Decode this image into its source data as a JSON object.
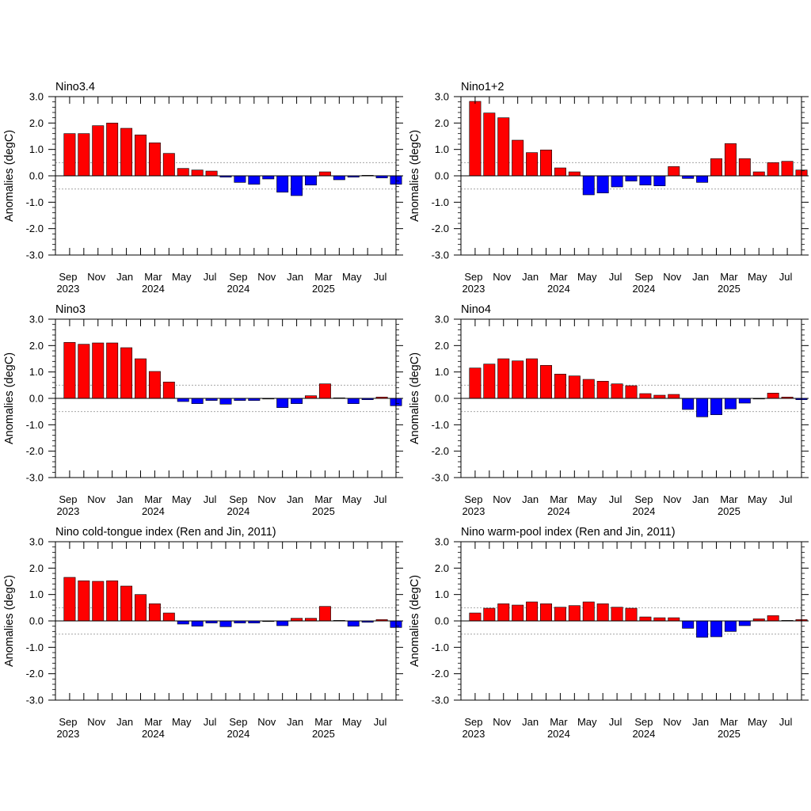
{
  "figure": {
    "colors": {
      "positive": "#ff0000",
      "negative": "#0000ff",
      "threshold_line": "#999999",
      "axis": "#000000"
    }
  },
  "chart_data": [
    {
      "type": "bar",
      "title": "Nino3.4",
      "ylabel": "Anomalies (degC)",
      "ylim": [
        -3.0,
        3.0
      ],
      "yticks": [
        "3.0",
        "2.0",
        "1.0",
        "0.0",
        "-1.0",
        "-2.0",
        "-3.0"
      ],
      "threshold_lines": [
        0.5,
        -0.5
      ],
      "xticks": [
        {
          "label": "Sep",
          "year": "2023"
        },
        {
          "label": "Nov"
        },
        {
          "label": "Jan"
        },
        {
          "label": "Mar",
          "year": "2024"
        },
        {
          "label": "May"
        },
        {
          "label": "Jul"
        },
        {
          "label": "Sep",
          "year": "2024"
        },
        {
          "label": "Nov"
        },
        {
          "label": "Jan"
        },
        {
          "label": "Mar",
          "year": "2025"
        },
        {
          "label": "May"
        },
        {
          "label": "Jul"
        }
      ],
      "categories": [
        "2023-09",
        "2023-10",
        "2023-11",
        "2023-12",
        "2024-01",
        "2024-02",
        "2024-03",
        "2024-04",
        "2024-05",
        "2024-06",
        "2024-07",
        "2024-08",
        "2024-09",
        "2024-10",
        "2024-11",
        "2024-12",
        "2025-01",
        "2025-02",
        "2025-03",
        "2025-04",
        "2025-05",
        "2025-06",
        "2025-07",
        "2025-08"
      ],
      "values": [
        1.6,
        1.6,
        1.9,
        2.0,
        1.8,
        1.55,
        1.25,
        0.85,
        0.28,
        0.22,
        0.18,
        -0.05,
        -0.25,
        -0.32,
        -0.12,
        -0.62,
        -0.75,
        -0.35,
        0.15,
        -0.15,
        -0.05,
        0.02,
        -0.08,
        -0.32
      ]
    },
    {
      "type": "bar",
      "title": "Nino1+2",
      "ylabel": "Anomalies (degC)",
      "ylim": [
        -3.0,
        3.0
      ],
      "yticks": [
        "3.0",
        "2.0",
        "1.0",
        "0.0",
        "-1.0",
        "-2.0",
        "-3.0"
      ],
      "threshold_lines": [
        0.5,
        -0.5
      ],
      "xticks": [
        {
          "label": "Sep",
          "year": "2023"
        },
        {
          "label": "Nov"
        },
        {
          "label": "Jan"
        },
        {
          "label": "Mar",
          "year": "2024"
        },
        {
          "label": "May"
        },
        {
          "label": "Jul"
        },
        {
          "label": "Sep",
          "year": "2024"
        },
        {
          "label": "Nov"
        },
        {
          "label": "Jan"
        },
        {
          "label": "Mar",
          "year": "2025"
        },
        {
          "label": "May"
        },
        {
          "label": "Jul"
        }
      ],
      "categories": [
        "2023-09",
        "2023-10",
        "2023-11",
        "2023-12",
        "2024-01",
        "2024-02",
        "2024-03",
        "2024-04",
        "2024-05",
        "2024-06",
        "2024-07",
        "2024-08",
        "2024-09",
        "2024-10",
        "2024-11",
        "2024-12",
        "2025-01",
        "2025-02",
        "2025-03",
        "2025-04",
        "2025-05",
        "2025-06",
        "2025-07",
        "2025-08"
      ],
      "values": [
        2.82,
        2.38,
        2.2,
        1.35,
        0.88,
        0.98,
        0.3,
        0.15,
        -0.72,
        -0.65,
        -0.42,
        -0.2,
        -0.35,
        -0.38,
        0.35,
        -0.1,
        -0.25,
        0.65,
        1.22,
        0.65,
        0.15,
        0.5,
        0.55,
        0.22
      ]
    },
    {
      "type": "bar",
      "title": "Nino3",
      "ylabel": "Anomalies (degC)",
      "ylim": [
        -3.0,
        3.0
      ],
      "yticks": [
        "3.0",
        "2.0",
        "1.0",
        "0.0",
        "-1.0",
        "-2.0",
        "-3.0"
      ],
      "threshold_lines": [
        0.5,
        -0.5
      ],
      "xticks": [
        {
          "label": "Sep",
          "year": "2023"
        },
        {
          "label": "Nov"
        },
        {
          "label": "Jan"
        },
        {
          "label": "Mar",
          "year": "2024"
        },
        {
          "label": "May"
        },
        {
          "label": "Jul"
        },
        {
          "label": "Sep",
          "year": "2024"
        },
        {
          "label": "Nov"
        },
        {
          "label": "Jan"
        },
        {
          "label": "Mar",
          "year": "2025"
        },
        {
          "label": "May"
        },
        {
          "label": "Jul"
        }
      ],
      "categories": [
        "2023-09",
        "2023-10",
        "2023-11",
        "2023-12",
        "2024-01",
        "2024-02",
        "2024-03",
        "2024-04",
        "2024-05",
        "2024-06",
        "2024-07",
        "2024-08",
        "2024-09",
        "2024-10",
        "2024-11",
        "2024-12",
        "2025-01",
        "2025-02",
        "2025-03",
        "2025-04",
        "2025-05",
        "2025-06",
        "2025-07",
        "2025-08"
      ],
      "values": [
        2.12,
        2.05,
        2.1,
        2.1,
        1.92,
        1.5,
        1.02,
        0.62,
        -0.12,
        -0.2,
        -0.08,
        -0.22,
        -0.08,
        -0.08,
        -0.02,
        -0.35,
        -0.2,
        0.1,
        0.55,
        0.02,
        -0.2,
        -0.05,
        0.05,
        -0.28
      ]
    },
    {
      "type": "bar",
      "title": "Nino4",
      "ylabel": "Anomalies (degC)",
      "ylim": [
        -3.0,
        3.0
      ],
      "yticks": [
        "3.0",
        "2.0",
        "1.0",
        "0.0",
        "-1.0",
        "-2.0",
        "-3.0"
      ],
      "threshold_lines": [
        0.5,
        -0.5
      ],
      "xticks": [
        {
          "label": "Sep",
          "year": "2023"
        },
        {
          "label": "Nov"
        },
        {
          "label": "Jan"
        },
        {
          "label": "Mar",
          "year": "2024"
        },
        {
          "label": "May"
        },
        {
          "label": "Jul"
        },
        {
          "label": "Sep",
          "year": "2024"
        },
        {
          "label": "Nov"
        },
        {
          "label": "Jan"
        },
        {
          "label": "Mar",
          "year": "2025"
        },
        {
          "label": "May"
        },
        {
          "label": "Jul"
        }
      ],
      "categories": [
        "2023-09",
        "2023-10",
        "2023-11",
        "2023-12",
        "2024-01",
        "2024-02",
        "2024-03",
        "2024-04",
        "2024-05",
        "2024-06",
        "2024-07",
        "2024-08",
        "2024-09",
        "2024-10",
        "2024-11",
        "2024-12",
        "2025-01",
        "2025-02",
        "2025-03",
        "2025-04",
        "2025-05",
        "2025-06",
        "2025-07",
        "2025-08"
      ],
      "values": [
        1.15,
        1.3,
        1.5,
        1.42,
        1.5,
        1.25,
        0.92,
        0.85,
        0.72,
        0.65,
        0.55,
        0.48,
        0.18,
        0.12,
        0.15,
        -0.42,
        -0.7,
        -0.62,
        -0.4,
        -0.18,
        0.0,
        0.2,
        0.05,
        -0.05
      ]
    },
    {
      "type": "bar",
      "title": "Nino cold-tongue index (Ren and Jin, 2011)",
      "ylabel": "Anomalies (degC)",
      "ylim": [
        -3.0,
        3.0
      ],
      "yticks": [
        "3.0",
        "2.0",
        "1.0",
        "0.0",
        "-1.0",
        "-2.0",
        "-3.0"
      ],
      "threshold_lines": [
        0.5,
        -0.5
      ],
      "xticks": [
        {
          "label": "Sep",
          "year": "2023"
        },
        {
          "label": "Nov"
        },
        {
          "label": "Jan"
        },
        {
          "label": "Mar",
          "year": "2024"
        },
        {
          "label": "May"
        },
        {
          "label": "Jul"
        },
        {
          "label": "Sep",
          "year": "2024"
        },
        {
          "label": "Nov"
        },
        {
          "label": "Jan"
        },
        {
          "label": "Mar",
          "year": "2025"
        },
        {
          "label": "May"
        },
        {
          "label": "Jul"
        }
      ],
      "categories": [
        "2023-09",
        "2023-10",
        "2023-11",
        "2023-12",
        "2024-01",
        "2024-02",
        "2024-03",
        "2024-04",
        "2024-05",
        "2024-06",
        "2024-07",
        "2024-08",
        "2024-09",
        "2024-10",
        "2024-11",
        "2024-12",
        "2025-01",
        "2025-02",
        "2025-03",
        "2025-04",
        "2025-05",
        "2025-06",
        "2025-07",
        "2025-08"
      ],
      "values": [
        1.65,
        1.52,
        1.5,
        1.52,
        1.32,
        1.0,
        0.65,
        0.3,
        -0.12,
        -0.2,
        -0.08,
        -0.22,
        -0.08,
        -0.08,
        -0.02,
        -0.18,
        0.1,
        0.1,
        0.55,
        0.02,
        -0.2,
        -0.05,
        0.05,
        -0.25
      ]
    },
    {
      "type": "bar",
      "title": "Nino warm-pool index (Ren and Jin, 2011)",
      "ylabel": "Anomalies (degC)",
      "ylim": [
        -3.0,
        3.0
      ],
      "yticks": [
        "3.0",
        "2.0",
        "1.0",
        "0.0",
        "-1.0",
        "-2.0",
        "-3.0"
      ],
      "threshold_lines": [
        0.5,
        -0.5
      ],
      "xticks": [
        {
          "label": "Sep",
          "year": "2023"
        },
        {
          "label": "Nov"
        },
        {
          "label": "Jan"
        },
        {
          "label": "Mar",
          "year": "2024"
        },
        {
          "label": "May"
        },
        {
          "label": "Jul"
        },
        {
          "label": "Sep",
          "year": "2024"
        },
        {
          "label": "Nov"
        },
        {
          "label": "Jan"
        },
        {
          "label": "Mar",
          "year": "2025"
        },
        {
          "label": "May"
        },
        {
          "label": "Jul"
        }
      ],
      "categories": [
        "2023-09",
        "2023-10",
        "2023-11",
        "2023-12",
        "2024-01",
        "2024-02",
        "2024-03",
        "2024-04",
        "2024-05",
        "2024-06",
        "2024-07",
        "2024-08",
        "2024-09",
        "2024-10",
        "2024-11",
        "2024-12",
        "2025-01",
        "2025-02",
        "2025-03",
        "2025-04",
        "2025-05",
        "2025-06",
        "2025-07",
        "2025-08"
      ],
      "values": [
        0.3,
        0.48,
        0.65,
        0.6,
        0.72,
        0.65,
        0.52,
        0.58,
        0.72,
        0.65,
        0.52,
        0.48,
        0.15,
        0.12,
        0.12,
        -0.28,
        -0.62,
        -0.6,
        -0.4,
        -0.18,
        0.08,
        0.2,
        0.02,
        0.05
      ]
    }
  ]
}
